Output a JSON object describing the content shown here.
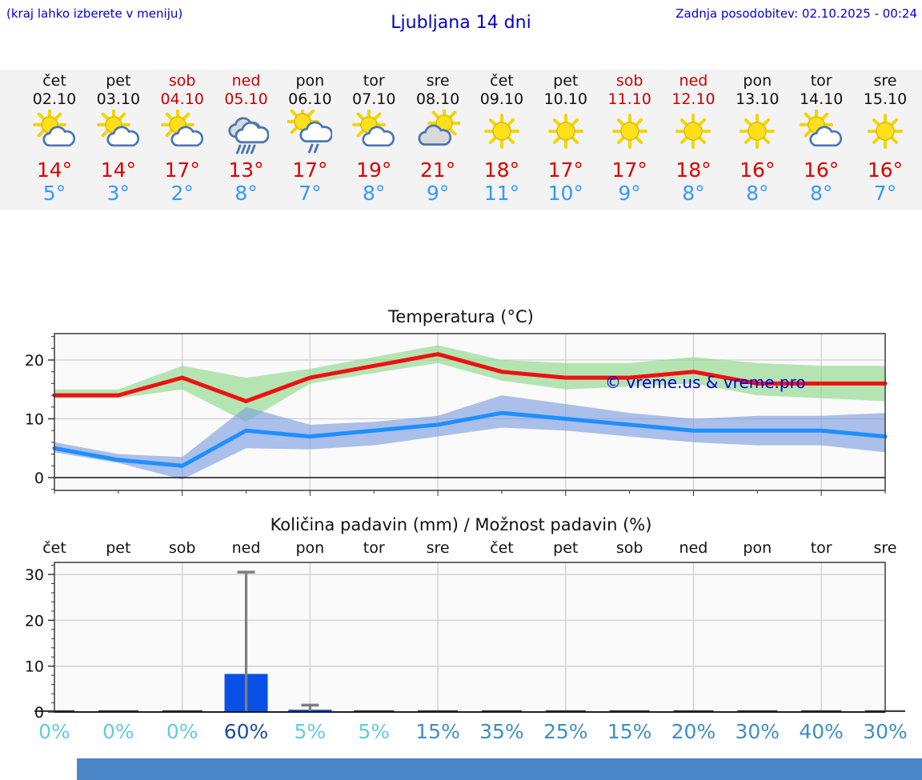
{
  "header": {
    "hint": "(kraj lahko izberete v meniju)",
    "title": "Ljubljana 14 dni",
    "updated": "Zadnja posodobitev: 02.10.2025 - 00:24"
  },
  "colors": {
    "header_blue": "#0000dd",
    "weekend_red": "#cc0000",
    "tmax_red": "#dd0000",
    "tmin_blue": "#3399ff",
    "strip_bg": "#f3f3f3",
    "plot_bg": "#fafafa",
    "grid": "#cfcfcf",
    "frame": "#3a3a3a",
    "temp_max_line": "#ee1111",
    "temp_min_line": "#1f8fff",
    "temp_max_band": "#8fd88c",
    "temp_min_band": "#7f9fe0",
    "precip_bar": "#0a50e6",
    "errorbar_gray": "#7f7f7f",
    "pct_low": "#62cbe0",
    "pct_mid": "#3e8ec6",
    "pct_high": "#1b4da0",
    "footer_banner": "#4a86c8"
  },
  "forecast": {
    "days": [
      {
        "name": "čet",
        "date": "02.10",
        "weekend": false,
        "icon": "sun-cloud",
        "tmax_label": "14°",
        "tmin_label": "5°"
      },
      {
        "name": "pet",
        "date": "03.10",
        "weekend": false,
        "icon": "sun-cloud",
        "tmax_label": "14°",
        "tmin_label": "3°"
      },
      {
        "name": "sob",
        "date": "04.10",
        "weekend": true,
        "icon": "sun-cloud",
        "tmax_label": "17°",
        "tmin_label": "2°"
      },
      {
        "name": "ned",
        "date": "05.10",
        "weekend": true,
        "icon": "rain",
        "tmax_label": "13°",
        "tmin_label": "8°"
      },
      {
        "name": "pon",
        "date": "06.10",
        "weekend": false,
        "icon": "sun-cloud-rain",
        "tmax_label": "17°",
        "tmin_label": "7°"
      },
      {
        "name": "tor",
        "date": "07.10",
        "weekend": false,
        "icon": "sun-cloud",
        "tmax_label": "19°",
        "tmin_label": "8°"
      },
      {
        "name": "sre",
        "date": "08.10",
        "weekend": false,
        "icon": "cloud-sun",
        "tmax_label": "21°",
        "tmin_label": "9°"
      },
      {
        "name": "čet",
        "date": "09.10",
        "weekend": false,
        "icon": "sun",
        "tmax_label": "18°",
        "tmin_label": "11°"
      },
      {
        "name": "pet",
        "date": "10.10",
        "weekend": false,
        "icon": "sun",
        "tmax_label": "17°",
        "tmin_label": "10°"
      },
      {
        "name": "sob",
        "date": "11.10",
        "weekend": true,
        "icon": "sun",
        "tmax_label": "17°",
        "tmin_label": "9°"
      },
      {
        "name": "ned",
        "date": "12.10",
        "weekend": true,
        "icon": "sun",
        "tmax_label": "18°",
        "tmin_label": "8°"
      },
      {
        "name": "pon",
        "date": "13.10",
        "weekend": false,
        "icon": "sun",
        "tmax_label": "16°",
        "tmin_label": "8°"
      },
      {
        "name": "tor",
        "date": "14.10",
        "weekend": false,
        "icon": "sun-cloud",
        "tmax_label": "16°",
        "tmin_label": "8°"
      },
      {
        "name": "sre",
        "date": "15.10",
        "weekend": false,
        "icon": "sun",
        "tmax_label": "16°",
        "tmin_label": "7°"
      }
    ]
  },
  "chart_data": [
    {
      "type": "line",
      "title": "Temperatura (°C)",
      "watermark": "© vreme.us & vreme.pro",
      "categories": [
        "čet",
        "pet",
        "sob",
        "ned",
        "pon",
        "tor",
        "sre",
        "čet",
        "pet",
        "sob",
        "ned",
        "pon",
        "tor",
        "sre"
      ],
      "ylim": [
        -2.2,
        24.5
      ],
      "yticks": [
        0,
        10,
        20
      ],
      "grid": true,
      "series": [
        {
          "name": "temp-max",
          "values": [
            14,
            14,
            17,
            13,
            17,
            19,
            21,
            18,
            17,
            17,
            18,
            16,
            16,
            16
          ]
        },
        {
          "name": "temp-min",
          "values": [
            5,
            3,
            2,
            8,
            7,
            8,
            9,
            11,
            10,
            9,
            8,
            8,
            8,
            7
          ]
        }
      ],
      "bands": [
        {
          "name": "temp-max-range",
          "upper": [
            15,
            15,
            19,
            17,
            18.5,
            20.5,
            22.5,
            20,
            19.5,
            19.5,
            20.5,
            19.5,
            19,
            19
          ],
          "lower": [
            13.5,
            13.5,
            15,
            9.5,
            16,
            17.8,
            19.5,
            16.5,
            15,
            15.5,
            16,
            14,
            13.5,
            13
          ]
        },
        {
          "name": "temp-min-range",
          "upper": [
            6,
            4,
            3.5,
            12,
            9,
            9.5,
            10.5,
            14,
            12.5,
            11,
            10,
            10.5,
            10.5,
            11
          ],
          "lower": [
            4.3,
            2.5,
            -0.3,
            5,
            4.8,
            5.5,
            7,
            8.5,
            8,
            7,
            6,
            5.5,
            5.5,
            4.3
          ]
        }
      ]
    },
    {
      "type": "bar",
      "title": "Količina padavin (mm) / Možnost padavin (%)",
      "categories": [
        "čet",
        "pet",
        "sob",
        "ned",
        "pon",
        "tor",
        "sre",
        "čet",
        "pet",
        "sob",
        "ned",
        "pon",
        "tor",
        "sre"
      ],
      "values_mm": [
        0,
        0,
        0,
        8.3,
        0.5,
        0,
        0,
        0,
        0,
        0,
        0,
        0,
        0,
        0
      ],
      "errorbars": [
        {
          "index": 3,
          "low": 0,
          "high": 30.5
        },
        {
          "index": 4,
          "low": 0,
          "high": 1.5
        }
      ],
      "probability_pct": [
        0,
        0,
        0,
        60,
        5,
        5,
        15,
        35,
        25,
        15,
        20,
        30,
        40,
        30
      ],
      "ylim": [
        0,
        32.6
      ],
      "yticks": [
        0,
        10,
        20,
        30
      ],
      "grid": true
    }
  ]
}
